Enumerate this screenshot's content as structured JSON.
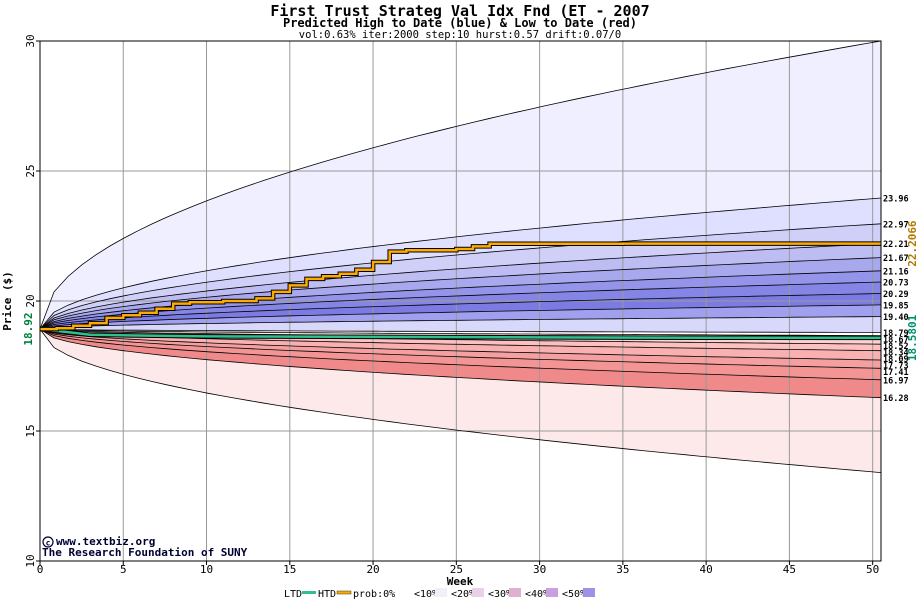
{
  "chart_data": {
    "type": "area",
    "title": "First Trust Strateg Val Idx Fnd (ET - 2007",
    "subtitle": "Predicted High to Date (blue) &  Low to Date (red)",
    "params": "vol:0.63% iter:2000 step:10 hurst:0.57 drift:0.07/0",
    "xlabel": "Week",
    "ylabel": "Price ($)",
    "xlim": [
      0,
      50.5
    ],
    "ylim": [
      10,
      30
    ],
    "x_ticks": [
      "0",
      "5",
      "10",
      "15",
      "20",
      "25",
      "30",
      "35",
      "40",
      "45",
      "50"
    ],
    "y_ticks": [
      "10",
      "15",
      "20",
      "25",
      "30"
    ],
    "grid": true,
    "start_price": "18.92",
    "start_price_value": 18.92,
    "current_high": "22.2066",
    "current_high_value": 22.2066,
    "current_low": "18.5801",
    "current_low_value": 18.5801,
    "right_labels": [
      "23.96",
      "22.97",
      "22.21",
      "21.67",
      "21.16",
      "20.73",
      "20.29",
      "19.85",
      "19.40",
      "18.79",
      "18.67",
      "18.52",
      "18.34",
      "18.09",
      "17.73",
      "17.41",
      "16.97",
      "16.28"
    ],
    "right_label_values": [
      23.96,
      22.97,
      22.21,
      21.67,
      21.16,
      20.73,
      20.29,
      19.85,
      19.4,
      18.79,
      18.67,
      18.52,
      18.34,
      18.09,
      17.73,
      17.41,
      16.97,
      16.28
    ],
    "blue_quantiles": [
      30.0,
      23.96,
      22.97,
      22.21,
      21.67,
      21.16,
      20.73,
      20.29,
      19.85,
      19.4,
      18.79
    ],
    "red_quantiles": [
      18.67,
      18.52,
      18.34,
      18.09,
      17.73,
      17.41,
      16.97,
      16.28,
      13.4
    ],
    "blue_fill_colors": [
      "#efefff",
      "#dfdfff",
      "#cfcff8",
      "#bdbdf3",
      "#a8a8ee",
      "#9494ea",
      "#8585e6",
      "#7b7be3",
      "#a0a0ee",
      "#d8d8fb"
    ],
    "red_fill_colors": [
      "#ffe8e8",
      "#ffd0d0",
      "#fcc0c0",
      "#f9b0b0",
      "#f5a0a0",
      "#f39595",
      "#f08a8a",
      "#fde9e9"
    ],
    "high_path": {
      "x": [
        0,
        1,
        2,
        3,
        4,
        5,
        6,
        7,
        8,
        9,
        10,
        11,
        12,
        13,
        14,
        15,
        16,
        17,
        18,
        19,
        20,
        21,
        22,
        23,
        24,
        25,
        26,
        27,
        28,
        30,
        35,
        40,
        45,
        50.5
      ],
      "y": [
        18.92,
        18.95,
        19.05,
        19.15,
        19.35,
        19.45,
        19.55,
        19.7,
        19.9,
        19.95,
        19.95,
        20.0,
        20.0,
        20.1,
        20.35,
        20.6,
        20.85,
        20.95,
        21.05,
        21.2,
        21.5,
        21.9,
        21.95,
        21.95,
        21.95,
        22.0,
        22.1,
        22.2,
        22.2,
        22.2,
        22.2066,
        22.2066,
        22.2066,
        22.2066
      ]
    },
    "low_path": {
      "x": [
        0,
        1,
        2,
        3,
        5,
        10,
        20,
        30,
        40,
        50.5
      ],
      "y": [
        18.92,
        18.85,
        18.78,
        18.7,
        18.68,
        18.64,
        18.62,
        18.6,
        18.59,
        18.5801
      ]
    },
    "watermark": [
      "www.textbiz.org",
      "The Research Foundation of SUNY"
    ],
    "watermark_icon": "copyright-icon",
    "colors": {
      "high_line": "#ffaa00",
      "low_line": "#30c090",
      "start_label": "#008040",
      "high_label": "#b07a00",
      "low_label": "#009070",
      "grid": "#999999"
    },
    "legend": {
      "ltd": "LTD",
      "htd": "HTD",
      "prob_label": "prob:0%",
      "items": [
        "<10%",
        "<20%",
        "<30%",
        "<40%",
        "<50%"
      ],
      "swatches": [
        "#ffffff",
        "#f0f0fa",
        "#e8d0e8",
        "#e0b0d0",
        "#c8a0e0",
        "#a090e8"
      ]
    }
  }
}
